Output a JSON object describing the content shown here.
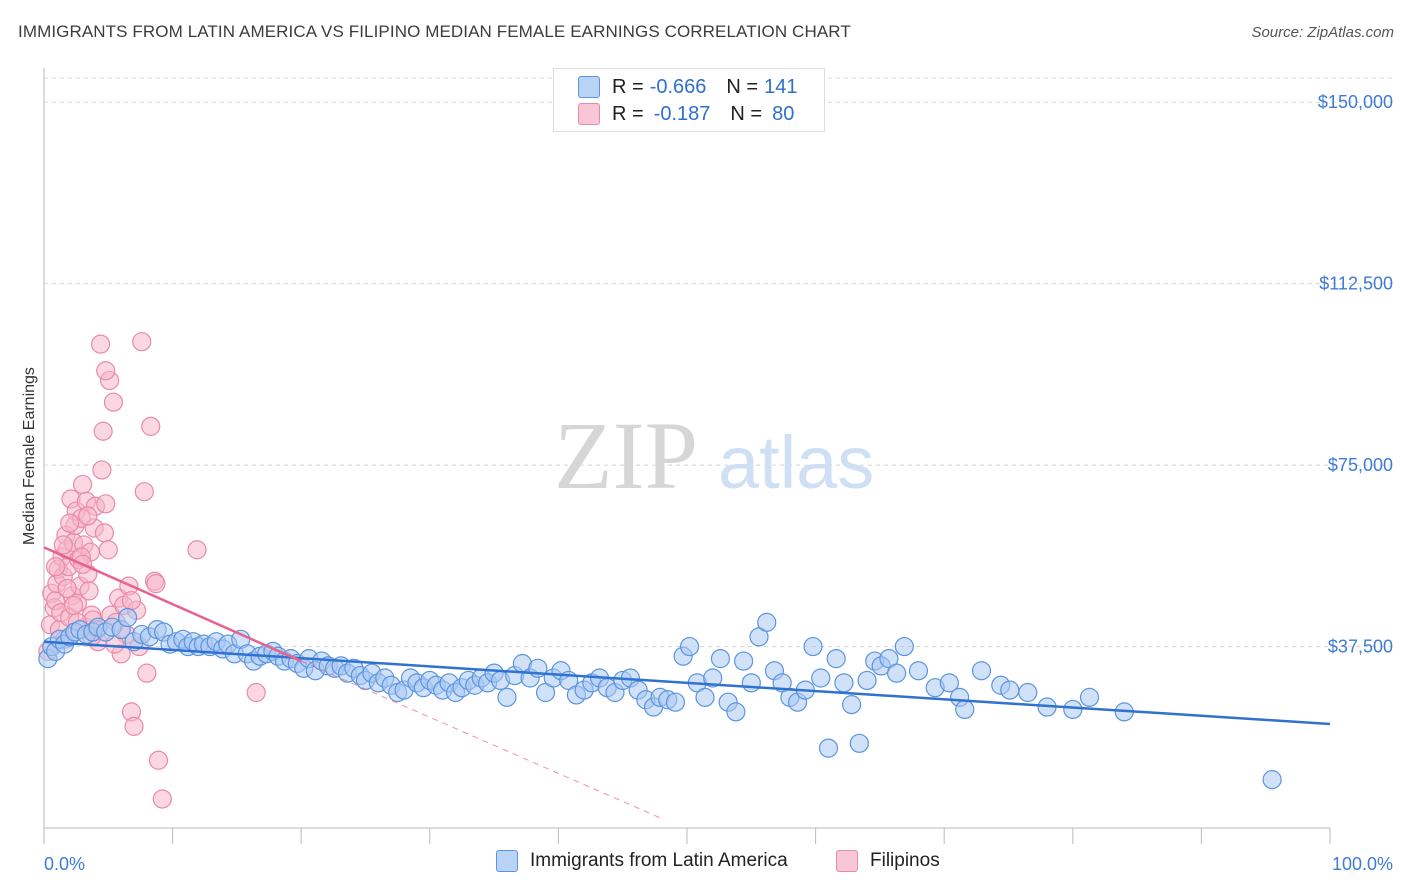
{
  "title": "IMMIGRANTS FROM LATIN AMERICA VS FILIPINO MEDIAN FEMALE EARNINGS CORRELATION CHART",
  "source": "Source: ZipAtlas.com",
  "watermark": {
    "zip": "ZIP",
    "atlas": "atlas"
  },
  "legend": {
    "series1": {
      "r_label": "R = ",
      "r_value": "-0.666",
      "n_label": "N = ",
      "n_value": "141"
    },
    "series2": {
      "r_label": "R = ",
      "r_value": "-0.187",
      "n_label": "N = ",
      "n_value": "80"
    }
  },
  "colors": {
    "blue_fill": "#a9c8f2",
    "blue_stroke": "#5b95e0",
    "blue_line": "#2f72d0",
    "pink_fill": "#f6b6c9",
    "pink_stroke": "#e98aa8",
    "pink_line": "#e8628c",
    "grid": "#d8d8d8",
    "axis_text": "#3d7bd6"
  },
  "chart_data": {
    "type": "scatter",
    "title": "IMMIGRANTS FROM LATIN AMERICA VS FILIPINO MEDIAN FEMALE EARNINGS CORRELATION CHART",
    "xlabel": "",
    "ylabel": "Median Female Earnings",
    "xlim": [
      0,
      100
    ],
    "ylim": [
      0,
      155000
    ],
    "x_tick_labels": [
      "0.0%",
      "100.0%"
    ],
    "y_ticks": [
      37500,
      75000,
      112500,
      150000
    ],
    "y_tick_labels": [
      "$37,500",
      "$75,000",
      "$112,500",
      "$150,000"
    ],
    "grid": true,
    "legend_position": "top-center",
    "series": [
      {
        "name": "Immigrants from Latin America",
        "color": "#a9c8f2",
        "trend": {
          "x": [
            0,
            100
          ],
          "y": [
            38500,
            21500
          ]
        },
        "points": [
          [
            0.3,
            35000
          ],
          [
            0.6,
            37500
          ],
          [
            0.9,
            36500
          ],
          [
            1.2,
            39000
          ],
          [
            1.6,
            38000
          ],
          [
            2.0,
            39500
          ],
          [
            2.4,
            40500
          ],
          [
            2.8,
            41000
          ],
          [
            3.3,
            40000
          ],
          [
            3.8,
            40500
          ],
          [
            4.2,
            41500
          ],
          [
            4.8,
            40500
          ],
          [
            5.3,
            41500
          ],
          [
            6.0,
            41000
          ],
          [
            6.5,
            43500
          ],
          [
            7.0,
            38500
          ],
          [
            7.6,
            40000
          ],
          [
            8.2,
            39500
          ],
          [
            8.8,
            41000
          ],
          [
            9.3,
            40500
          ],
          [
            9.8,
            38000
          ],
          [
            10.3,
            38500
          ],
          [
            10.8,
            39000
          ],
          [
            11.2,
            37500
          ],
          [
            11.6,
            38500
          ],
          [
            12.0,
            37500
          ],
          [
            12.4,
            38000
          ],
          [
            12.9,
            37500
          ],
          [
            13.4,
            38500
          ],
          [
            13.9,
            37000
          ],
          [
            14.3,
            38000
          ],
          [
            14.8,
            36000
          ],
          [
            15.3,
            39000
          ],
          [
            15.8,
            36000
          ],
          [
            16.3,
            34500
          ],
          [
            16.8,
            35500
          ],
          [
            17.3,
            36000
          ],
          [
            17.8,
            36500
          ],
          [
            18.2,
            35500
          ],
          [
            18.7,
            34500
          ],
          [
            19.2,
            35000
          ],
          [
            19.7,
            34000
          ],
          [
            20.2,
            33000
          ],
          [
            20.6,
            35000
          ],
          [
            21.1,
            32500
          ],
          [
            21.6,
            34500
          ],
          [
            22.1,
            33500
          ],
          [
            22.6,
            33000
          ],
          [
            23.1,
            33500
          ],
          [
            23.6,
            32000
          ],
          [
            24.1,
            33000
          ],
          [
            24.6,
            31500
          ],
          [
            25.0,
            30500
          ],
          [
            25.5,
            32000
          ],
          [
            26.0,
            30000
          ],
          [
            26.5,
            31000
          ],
          [
            27.0,
            29500
          ],
          [
            27.5,
            28000
          ],
          [
            28.0,
            28500
          ],
          [
            28.5,
            31000
          ],
          [
            29.0,
            30000
          ],
          [
            29.5,
            29000
          ],
          [
            30.0,
            30500
          ],
          [
            30.5,
            29500
          ],
          [
            31.0,
            28500
          ],
          [
            31.5,
            30000
          ],
          [
            32.0,
            28000
          ],
          [
            32.5,
            29000
          ],
          [
            33.0,
            30500
          ],
          [
            33.5,
            29500
          ],
          [
            34.0,
            31000
          ],
          [
            34.5,
            30000
          ],
          [
            35.0,
            32000
          ],
          [
            35.5,
            30500
          ],
          [
            36.0,
            27000
          ],
          [
            36.6,
            31500
          ],
          [
            37.2,
            34000
          ],
          [
            37.8,
            31000
          ],
          [
            38.4,
            33000
          ],
          [
            39.0,
            28000
          ],
          [
            39.6,
            31000
          ],
          [
            40.2,
            32500
          ],
          [
            40.8,
            30500
          ],
          [
            41.4,
            27500
          ],
          [
            42.0,
            28500
          ],
          [
            42.6,
            30000
          ],
          [
            43.2,
            31000
          ],
          [
            43.8,
            29000
          ],
          [
            44.4,
            28000
          ],
          [
            45.0,
            30500
          ],
          [
            45.6,
            31000
          ],
          [
            46.2,
            28500
          ],
          [
            46.8,
            26500
          ],
          [
            47.4,
            25000
          ],
          [
            47.9,
            27000
          ],
          [
            48.5,
            26500
          ],
          [
            49.1,
            26000
          ],
          [
            49.7,
            35500
          ],
          [
            50.2,
            37500
          ],
          [
            50.8,
            30000
          ],
          [
            51.4,
            27000
          ],
          [
            52.0,
            31000
          ],
          [
            52.6,
            35000
          ],
          [
            53.2,
            26000
          ],
          [
            53.8,
            24000
          ],
          [
            54.4,
            34500
          ],
          [
            55.0,
            30000
          ],
          [
            55.6,
            39500
          ],
          [
            56.2,
            42500
          ],
          [
            56.8,
            32500
          ],
          [
            57.4,
            30000
          ],
          [
            58.0,
            27000
          ],
          [
            58.6,
            26000
          ],
          [
            59.2,
            28500
          ],
          [
            59.8,
            37500
          ],
          [
            60.4,
            31000
          ],
          [
            61.0,
            16500
          ],
          [
            61.6,
            35000
          ],
          [
            62.2,
            30000
          ],
          [
            62.8,
            25500
          ],
          [
            63.4,
            17500
          ],
          [
            64.0,
            30500
          ],
          [
            64.6,
            34500
          ],
          [
            65.1,
            33500
          ],
          [
            65.7,
            35000
          ],
          [
            66.3,
            32000
          ],
          [
            66.9,
            37500
          ],
          [
            68.0,
            32500
          ],
          [
            69.3,
            29000
          ],
          [
            70.4,
            30000
          ],
          [
            71.2,
            27000
          ],
          [
            71.6,
            24500
          ],
          [
            72.9,
            32500
          ],
          [
            74.4,
            29500
          ],
          [
            75.1,
            28500
          ],
          [
            76.5,
            28000
          ],
          [
            78.0,
            25000
          ],
          [
            80.0,
            24500
          ],
          [
            81.3,
            27000
          ],
          [
            84.0,
            24000
          ],
          [
            95.5,
            10000
          ]
        ]
      },
      {
        "name": "Filipinos",
        "color": "#f6b6c9",
        "trend": {
          "x": [
            0,
            20
          ],
          "y": [
            58000,
            34500
          ]
        },
        "trend_dashed": {
          "x": [
            20,
            48
          ],
          "y": [
            34500,
            2000
          ]
        },
        "points": [
          [
            0.3,
            36500
          ],
          [
            0.5,
            42000
          ],
          [
            0.6,
            48500
          ],
          [
            0.8,
            45500
          ],
          [
            0.9,
            47000
          ],
          [
            1.0,
            50500
          ],
          [
            1.1,
            53500
          ],
          [
            1.2,
            41000
          ],
          [
            1.3,
            44500
          ],
          [
            1.4,
            56000
          ],
          [
            1.5,
            52000
          ],
          [
            1.6,
            39000
          ],
          [
            1.7,
            60500
          ],
          [
            1.8,
            57500
          ],
          [
            1.9,
            54000
          ],
          [
            2.0,
            43500
          ],
          [
            2.1,
            68000
          ],
          [
            2.2,
            48000
          ],
          [
            2.3,
            59000
          ],
          [
            2.4,
            62500
          ],
          [
            2.5,
            65500
          ],
          [
            2.6,
            46500
          ],
          [
            2.7,
            55500
          ],
          [
            2.8,
            50000
          ],
          [
            2.9,
            64000
          ],
          [
            3.0,
            71000
          ],
          [
            3.1,
            58500
          ],
          [
            3.2,
            41500
          ],
          [
            3.3,
            67500
          ],
          [
            3.4,
            52500
          ],
          [
            3.5,
            49000
          ],
          [
            3.6,
            57000
          ],
          [
            3.7,
            44000
          ],
          [
            3.8,
            43000
          ],
          [
            3.9,
            62000
          ],
          [
            4.0,
            66500
          ],
          [
            4.2,
            38500
          ],
          [
            4.4,
            100000
          ],
          [
            4.5,
            74000
          ],
          [
            4.6,
            82000
          ],
          [
            4.7,
            61000
          ],
          [
            4.8,
            67000
          ],
          [
            5.0,
            57500
          ],
          [
            5.2,
            44000
          ],
          [
            5.4,
            88000
          ],
          [
            5.6,
            42500
          ],
          [
            5.8,
            47500
          ],
          [
            6.0,
            36000
          ],
          [
            6.2,
            46000
          ],
          [
            6.4,
            40000
          ],
          [
            6.6,
            50000
          ],
          [
            6.8,
            24000
          ],
          [
            7.0,
            21000
          ],
          [
            7.2,
            45000
          ],
          [
            7.4,
            37500
          ],
          [
            7.6,
            100500
          ],
          [
            7.8,
            69500
          ],
          [
            8.0,
            32000
          ],
          [
            8.3,
            83000
          ],
          [
            8.6,
            51000
          ],
          [
            8.9,
            14000
          ],
          [
            9.2,
            6000
          ],
          [
            11.9,
            57500
          ],
          [
            16.5,
            28000
          ],
          [
            2.6,
            42500
          ],
          [
            3.4,
            64500
          ],
          [
            2.9,
            56000
          ],
          [
            5.1,
            92500
          ],
          [
            4.8,
            94500
          ],
          [
            6.8,
            47000
          ],
          [
            1.8,
            49500
          ],
          [
            3.0,
            54500
          ],
          [
            4.1,
            41000
          ],
          [
            2.3,
            46000
          ],
          [
            0.9,
            54000
          ],
          [
            1.5,
            58500
          ],
          [
            3.7,
            39500
          ],
          [
            8.7,
            50500
          ],
          [
            5.5,
            38000
          ],
          [
            2.0,
            63000
          ]
        ]
      }
    ]
  },
  "bottom_legend": {
    "item1": "Immigrants from Latin America",
    "item2": "Filipinos"
  }
}
